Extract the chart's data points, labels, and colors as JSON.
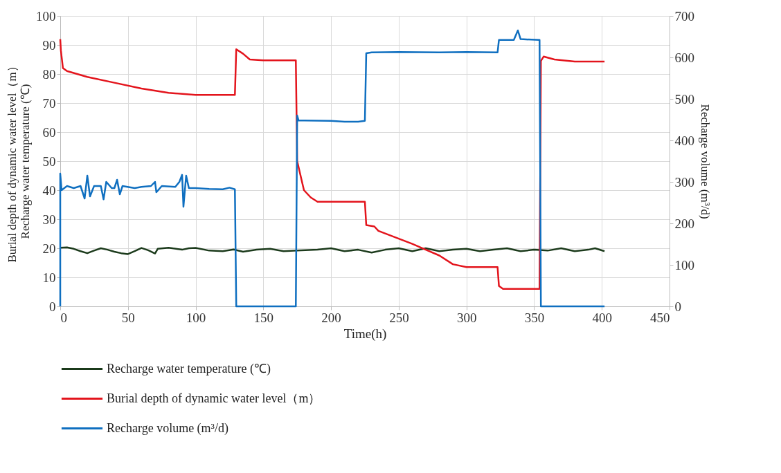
{
  "chart_data": {
    "type": "line",
    "xlabel": "Time(h)",
    "ylabel": "Burial depth of dynamic water level（m）\nRecharge water temperature (℃)",
    "y2label": "Recharge volume (m³/d)",
    "xlim": [
      0,
      450
    ],
    "xticks": [
      0,
      50,
      100,
      150,
      200,
      250,
      300,
      350,
      400,
      450
    ],
    "ylim": [
      0,
      100
    ],
    "yticks": [
      0,
      10,
      20,
      30,
      40,
      50,
      60,
      70,
      80,
      90,
      100
    ],
    "y2lim": [
      0,
      700
    ],
    "y2ticks": [
      0,
      100,
      200,
      300,
      400,
      500,
      600,
      700
    ],
    "grid": true,
    "legend": "bottom",
    "line_style": "solid",
    "marker": "none",
    "series": [
      {
        "name": "Recharge water temperature (℃)",
        "color": "#1b3a1b",
        "x": [
          0,
          5,
          10,
          15,
          20,
          25,
          30,
          35,
          40,
          45,
          50,
          55,
          60,
          65,
          70,
          72,
          80,
          90,
          95,
          100,
          110,
          120,
          128,
          135,
          145,
          155,
          165,
          175,
          190,
          200,
          210,
          220,
          230,
          240,
          250,
          260,
          270,
          280,
          290,
          300,
          310,
          320,
          330,
          340,
          350,
          360,
          370,
          380,
          390,
          395,
          402
        ],
        "values": [
          20.2,
          20.3,
          19.8,
          19,
          18.3,
          19.2,
          20,
          19.5,
          18.8,
          18.3,
          18,
          19,
          20.1,
          19.3,
          18.2,
          19.8,
          20.2,
          19.5,
          20,
          20.1,
          19.2,
          19,
          19.6,
          18.8,
          19.5,
          19.8,
          19,
          19.2,
          19.5,
          20,
          19,
          19.5,
          18.5,
          19.5,
          20,
          19,
          20,
          19,
          19.5,
          19.8,
          19,
          19.5,
          20,
          19,
          19.5,
          19.2,
          20,
          19,
          19.5,
          20,
          19
        ]
      },
      {
        "name": "Burial depth of dynamic water level（m）",
        "color": "#e3141c",
        "x": [
          0,
          0.5,
          2,
          5,
          20,
          40,
          60,
          80,
          100,
          129,
          130,
          135,
          140,
          150,
          174,
          175,
          178,
          180,
          185,
          190,
          225,
          226,
          232,
          235,
          260,
          270,
          280,
          290,
          300,
          323,
          324,
          327,
          354,
          355,
          357,
          365,
          380,
          402
        ],
        "values": [
          92,
          88,
          82,
          81,
          79,
          77,
          75,
          73.5,
          72.8,
          72.8,
          88.5,
          87,
          85,
          84.7,
          84.7,
          50,
          44,
          40,
          37.5,
          36,
          36,
          28,
          27.5,
          26,
          21.5,
          19.5,
          17.5,
          14.5,
          13.5,
          13.5,
          7,
          6,
          6,
          84.5,
          86,
          85,
          84.3,
          84.3
        ]
      },
      {
        "name": "Recharge volume (m³/d)",
        "color": "#0f6fc0",
        "axis": "y2",
        "x": [
          0,
          0,
          1,
          5,
          10,
          15,
          18,
          20,
          22,
          25,
          30,
          32,
          34,
          38,
          40,
          42,
          44,
          46,
          55,
          60,
          67,
          70,
          71,
          75,
          85,
          88,
          90,
          91,
          93,
          95,
          100,
          110,
          120,
          125,
          129,
          130,
          174,
          175,
          176,
          180,
          200,
          210,
          220,
          225,
          226,
          230,
          250,
          280,
          300,
          323,
          324,
          335,
          338,
          340,
          354,
          355,
          402
        ],
        "values": [
          0,
          320,
          280,
          290,
          285,
          290,
          260,
          315,
          265,
          290,
          290,
          258,
          300,
          285,
          285,
          305,
          270,
          290,
          285,
          288,
          290,
          300,
          275,
          290,
          288,
          300,
          317,
          240,
          315,
          285,
          285,
          283,
          282,
          286,
          282,
          0,
          0,
          460,
          448,
          448,
          447,
          445,
          445,
          447,
          610,
          612,
          613,
          612,
          613,
          612,
          642,
          642,
          665,
          644,
          642,
          0,
          0
        ]
      }
    ]
  }
}
